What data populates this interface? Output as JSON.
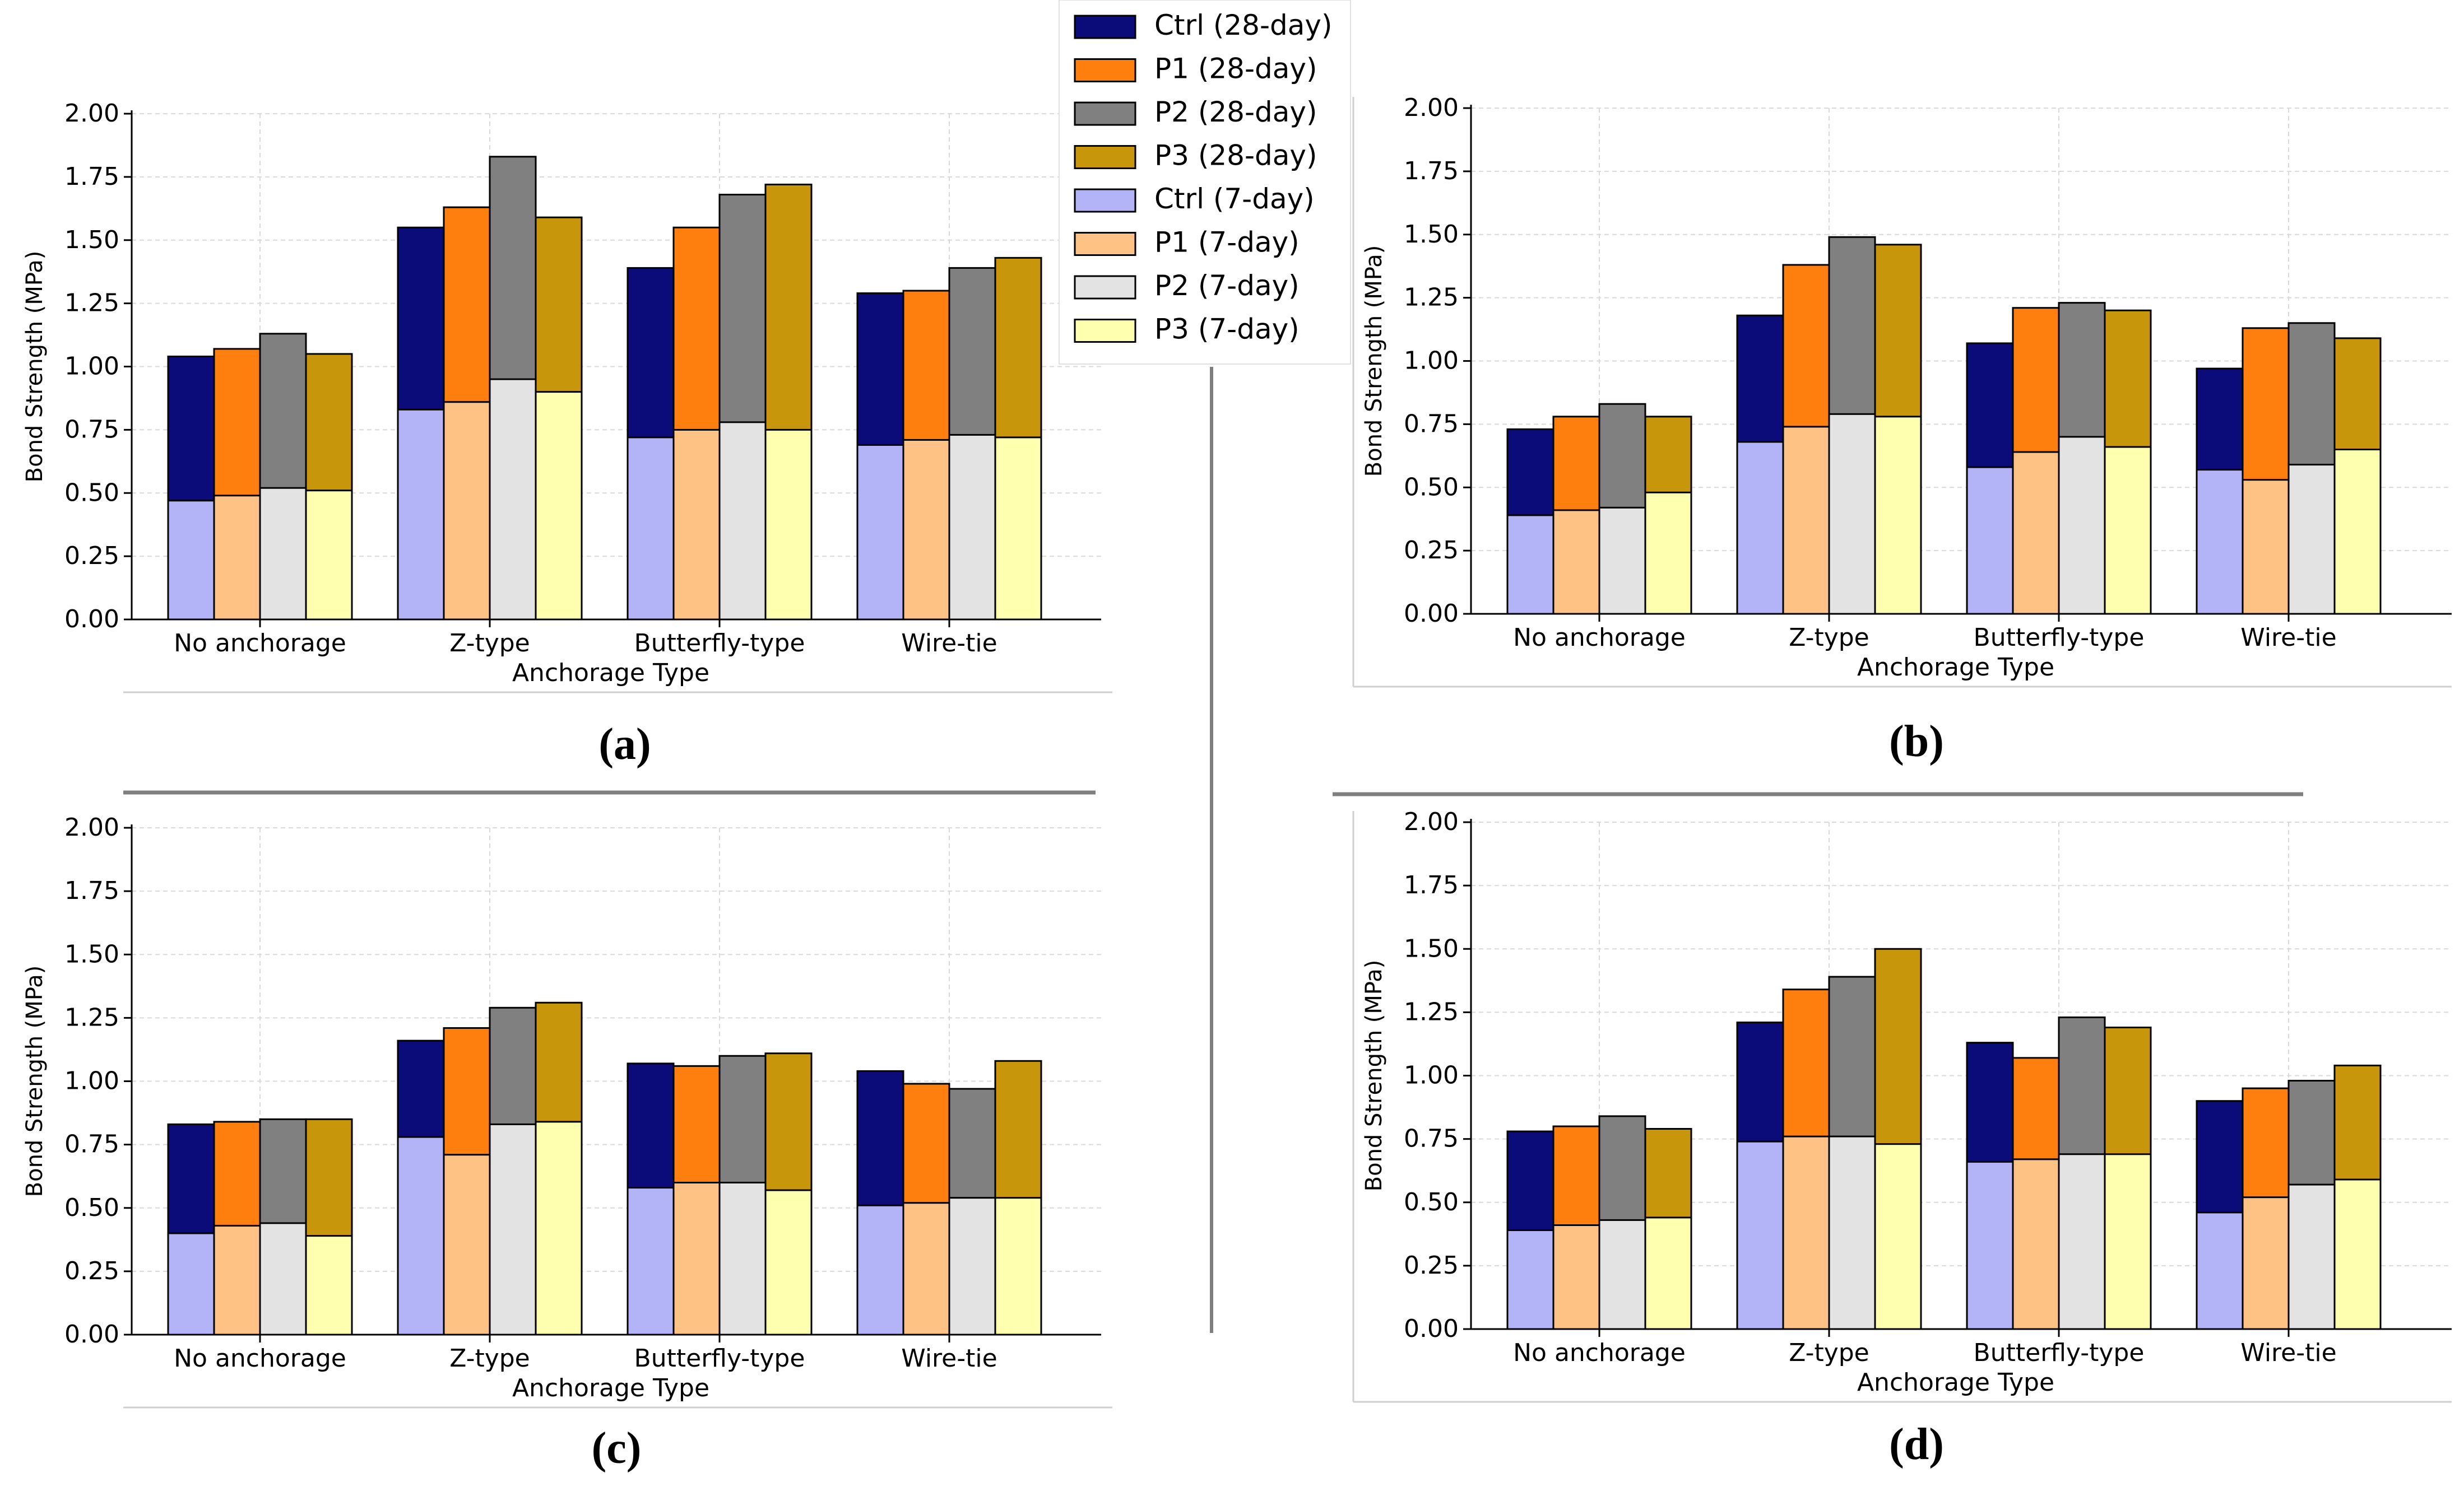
{
  "colors": {
    "ctrl28": "#0b0b7a",
    "p128": "#ff7f0e",
    "p228": "#808080",
    "p328": "#c8960b",
    "ctrl7": "#b3b3f7",
    "p17": "#ffc285",
    "p27": "#e3e3e3",
    "p37": "#ffffb0",
    "grid": "#d9d9d9",
    "axis": "#000000",
    "separator": "#7f7f7f"
  },
  "legend": [
    {
      "label": "Ctrl (28-day)",
      "color": "ctrl28"
    },
    {
      "label": "P1 (28-day)",
      "color": "p128"
    },
    {
      "label": "P2 (28-day)",
      "color": "p228"
    },
    {
      "label": "P3 (28-day)",
      "color": "p328"
    },
    {
      "label": "Ctrl (7-day)",
      "color": "ctrl7"
    },
    {
      "label": "P1 (7-day)",
      "color": "p17"
    },
    {
      "label": "P2 (7-day)",
      "color": "p27"
    },
    {
      "label": "P3 (7-day)",
      "color": "p37"
    }
  ],
  "chart_data": [
    {
      "type": "bar",
      "panel": "(a)",
      "xlabel": "Anchorage Type",
      "ylabel": "Bond Strength (MPa)",
      "ylim": [
        0,
        2
      ],
      "yticks": [
        "0.00",
        "0.25",
        "0.50",
        "0.75",
        "1.00",
        "1.25",
        "1.50",
        "1.75",
        "2.00"
      ],
      "categories": [
        "No anchorage",
        "Z-type",
        "Butterfly-type",
        "Wire-tie"
      ],
      "series_28day": [
        {
          "name": "Ctrl (28-day)",
          "values": [
            1.04,
            1.55,
            1.39,
            1.29
          ]
        },
        {
          "name": "P1 (28-day)",
          "values": [
            1.07,
            1.63,
            1.55,
            1.3
          ]
        },
        {
          "name": "P2 (28-day)",
          "values": [
            1.13,
            1.83,
            1.68,
            1.39
          ]
        },
        {
          "name": "P3 (28-day)",
          "values": [
            1.05,
            1.59,
            1.72,
            1.43
          ]
        }
      ],
      "series_7day": [
        {
          "name": "Ctrl (7-day)",
          "values": [
            0.47,
            0.83,
            0.72,
            0.69
          ]
        },
        {
          "name": "P1 (7-day)",
          "values": [
            0.49,
            0.86,
            0.75,
            0.71
          ]
        },
        {
          "name": "P2 (7-day)",
          "values": [
            0.52,
            0.95,
            0.78,
            0.73
          ]
        },
        {
          "name": "P3 (7-day)",
          "values": [
            0.51,
            0.9,
            0.75,
            0.72
          ]
        }
      ]
    },
    {
      "type": "bar",
      "panel": "(b)",
      "xlabel": "Anchorage Type",
      "ylabel": "Bond Strength (MPa)",
      "ylim": [
        0,
        2
      ],
      "yticks": [
        "0.00",
        "0.25",
        "0.50",
        "0.75",
        "1.00",
        "1.25",
        "1.50",
        "1.75",
        "2.00"
      ],
      "categories": [
        "No anchorage",
        "Z-type",
        "Butterfly-type",
        "Wire-tie"
      ],
      "series_28day": [
        {
          "name": "Ctrl (28-day)",
          "values": [
            0.73,
            1.18,
            1.07,
            0.97
          ]
        },
        {
          "name": "P1 (28-day)",
          "values": [
            0.78,
            1.38,
            1.21,
            1.13
          ]
        },
        {
          "name": "P2 (28-day)",
          "values": [
            0.83,
            1.49,
            1.23,
            1.15
          ]
        },
        {
          "name": "P3 (28-day)",
          "values": [
            0.78,
            1.46,
            1.2,
            1.09
          ]
        }
      ],
      "series_7day": [
        {
          "name": "Ctrl (7-day)",
          "values": [
            0.39,
            0.68,
            0.58,
            0.57
          ]
        },
        {
          "name": "P1 (7-day)",
          "values": [
            0.41,
            0.74,
            0.64,
            0.53
          ]
        },
        {
          "name": "P2 (7-day)",
          "values": [
            0.42,
            0.79,
            0.7,
            0.59
          ]
        },
        {
          "name": "P3 (7-day)",
          "values": [
            0.48,
            0.78,
            0.66,
            0.65
          ]
        }
      ]
    },
    {
      "type": "bar",
      "panel": "(c)",
      "xlabel": "Anchorage Type",
      "ylabel": "Bond Strength (MPa)",
      "ylim": [
        0,
        2
      ],
      "yticks": [
        "0.00",
        "0.25",
        "0.50",
        "0.75",
        "1.00",
        "1.25",
        "1.50",
        "1.75",
        "2.00"
      ],
      "categories": [
        "No anchorage",
        "Z-type",
        "Butterfly-type",
        "Wire-tie"
      ],
      "series_28day": [
        {
          "name": "Ctrl (28-day)",
          "values": [
            0.83,
            1.16,
            1.07,
            1.04
          ]
        },
        {
          "name": "P1 (28-day)",
          "values": [
            0.84,
            1.21,
            1.06,
            0.99
          ]
        },
        {
          "name": "P2 (28-day)",
          "values": [
            0.85,
            1.29,
            1.1,
            0.97
          ]
        },
        {
          "name": "P3 (28-day)",
          "values": [
            0.85,
            1.31,
            1.11,
            1.08
          ]
        }
      ],
      "series_7day": [
        {
          "name": "Ctrl (7-day)",
          "values": [
            0.4,
            0.78,
            0.58,
            0.51
          ]
        },
        {
          "name": "P1 (7-day)",
          "values": [
            0.43,
            0.71,
            0.6,
            0.52
          ]
        },
        {
          "name": "P2 (7-day)",
          "values": [
            0.44,
            0.83,
            0.6,
            0.54
          ]
        },
        {
          "name": "P3 (7-day)",
          "values": [
            0.39,
            0.84,
            0.57,
            0.54
          ]
        }
      ]
    },
    {
      "type": "bar",
      "panel": "(d)",
      "xlabel": "Anchorage Type",
      "ylabel": "Bond Strength (MPa)",
      "ylim": [
        0,
        2
      ],
      "yticks": [
        "0.00",
        "0.25",
        "0.50",
        "0.75",
        "1.00",
        "1.25",
        "1.50",
        "1.75",
        "2.00"
      ],
      "categories": [
        "No anchorage",
        "Z-type",
        "Butterfly-type",
        "Wire-tie"
      ],
      "series_28day": [
        {
          "name": "Ctrl (28-day)",
          "values": [
            0.78,
            1.21,
            1.13,
            0.9
          ]
        },
        {
          "name": "P1 (28-day)",
          "values": [
            0.8,
            1.34,
            1.07,
            0.95
          ]
        },
        {
          "name": "P2 (28-day)",
          "values": [
            0.84,
            1.39,
            1.23,
            0.98
          ]
        },
        {
          "name": "P3 (28-day)",
          "values": [
            0.79,
            1.5,
            1.19,
            1.04
          ]
        }
      ],
      "series_7day": [
        {
          "name": "Ctrl (7-day)",
          "values": [
            0.39,
            0.74,
            0.66,
            0.46
          ]
        },
        {
          "name": "P1 (7-day)",
          "values": [
            0.41,
            0.76,
            0.67,
            0.52
          ]
        },
        {
          "name": "P2 (7-day)",
          "values": [
            0.43,
            0.76,
            0.69,
            0.57
          ]
        },
        {
          "name": "P3 (7-day)",
          "values": [
            0.44,
            0.73,
            0.69,
            0.59
          ]
        }
      ]
    }
  ]
}
